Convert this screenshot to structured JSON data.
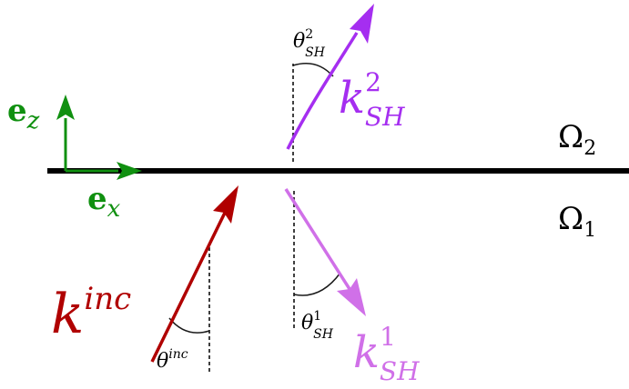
{
  "colors": {
    "interface": "#000000",
    "basis": "#109010",
    "incident": "#b00000",
    "sh_reflected": "#a52ef0",
    "sh_transmitted": "#d070e8",
    "guide": "#000000",
    "angle_arc": "#1a1a1a"
  },
  "basis": {
    "ez_base": "e",
    "ez_sub": "z",
    "ex_base": "e",
    "ex_sub": "x"
  },
  "regions": {
    "upper_base": "Ω",
    "upper_sub": "2",
    "lower_base": "Ω",
    "lower_sub": "1"
  },
  "vectors": {
    "incident_base": "k",
    "incident_sup": "inc",
    "sh2_base": "k",
    "sh2_sup": "2",
    "sh2_sub": "SH",
    "sh1_base": "k",
    "sh1_sup": "1",
    "sh1_sub": "SH"
  },
  "angles": {
    "inc_base": "θ",
    "inc_sup": "inc",
    "sh2_base": "θ",
    "sh2_sup": "2",
    "sh2_sub": "SH",
    "sh1_base": "θ",
    "sh1_sup": "1",
    "sh1_sub": "SH"
  }
}
